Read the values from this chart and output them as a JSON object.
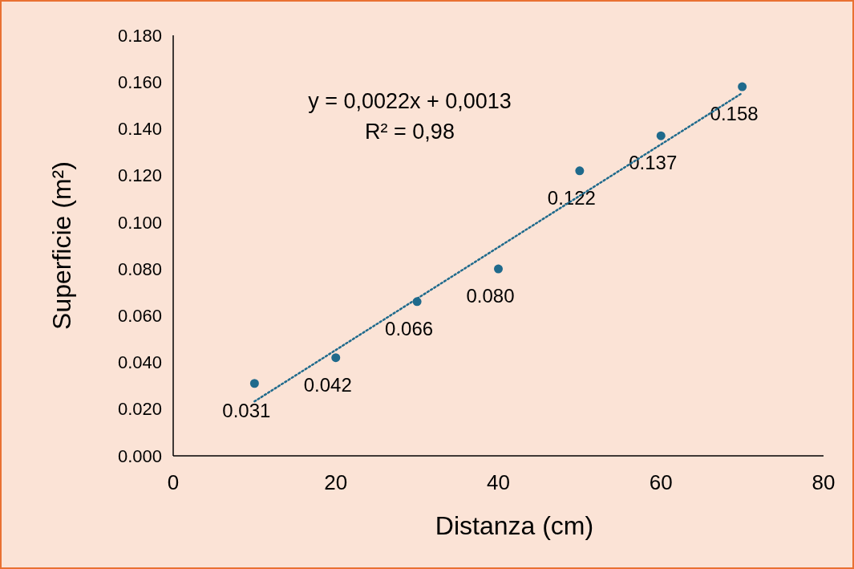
{
  "chart_data": {
    "type": "scatter",
    "xlabel": "Distanza (cm)",
    "ylabel": "Superficie (m²)",
    "x": [
      10,
      20,
      30,
      40,
      50,
      60,
      70
    ],
    "series": [
      {
        "color": "#1f6a8c",
        "marker": "circle",
        "values": [
          0.031,
          0.042,
          0.066,
          0.08,
          0.122,
          0.137,
          0.158
        ],
        "value_labels": [
          "0.031",
          "0.042",
          "0.066",
          "0.080",
          "0.122",
          "0.137",
          "0.158"
        ]
      },
      {
        "type": "line",
        "color": "#1f6a8c",
        "line_style": "dotted",
        "marker": "none",
        "x": [
          10,
          70
        ],
        "values": [
          0.0233,
          0.1553
        ]
      }
    ],
    "xlim": [
      0,
      80
    ],
    "xticks": [
      0,
      20,
      40,
      60,
      80
    ],
    "ylim": [
      0,
      0.18
    ],
    "yticks": [
      {
        "value": 0,
        "label": "0.000"
      },
      {
        "value": 0.02,
        "label": "0.020"
      },
      {
        "value": 0.04,
        "label": "0.040"
      },
      {
        "value": 0.06,
        "label": "0.060"
      },
      {
        "value": 0.08,
        "label": "0.080"
      },
      {
        "value": 0.1,
        "label": "0.100"
      },
      {
        "value": 0.12,
        "label": "0.120"
      },
      {
        "value": 0.14,
        "label": "0.140"
      },
      {
        "value": 0.16,
        "label": "0.160"
      },
      {
        "value": 0.18,
        "label": "0.180"
      }
    ],
    "annotations": [
      "y = 0,0022x + 0,0013",
      "R² = 0,98"
    ],
    "grid": false
  }
}
